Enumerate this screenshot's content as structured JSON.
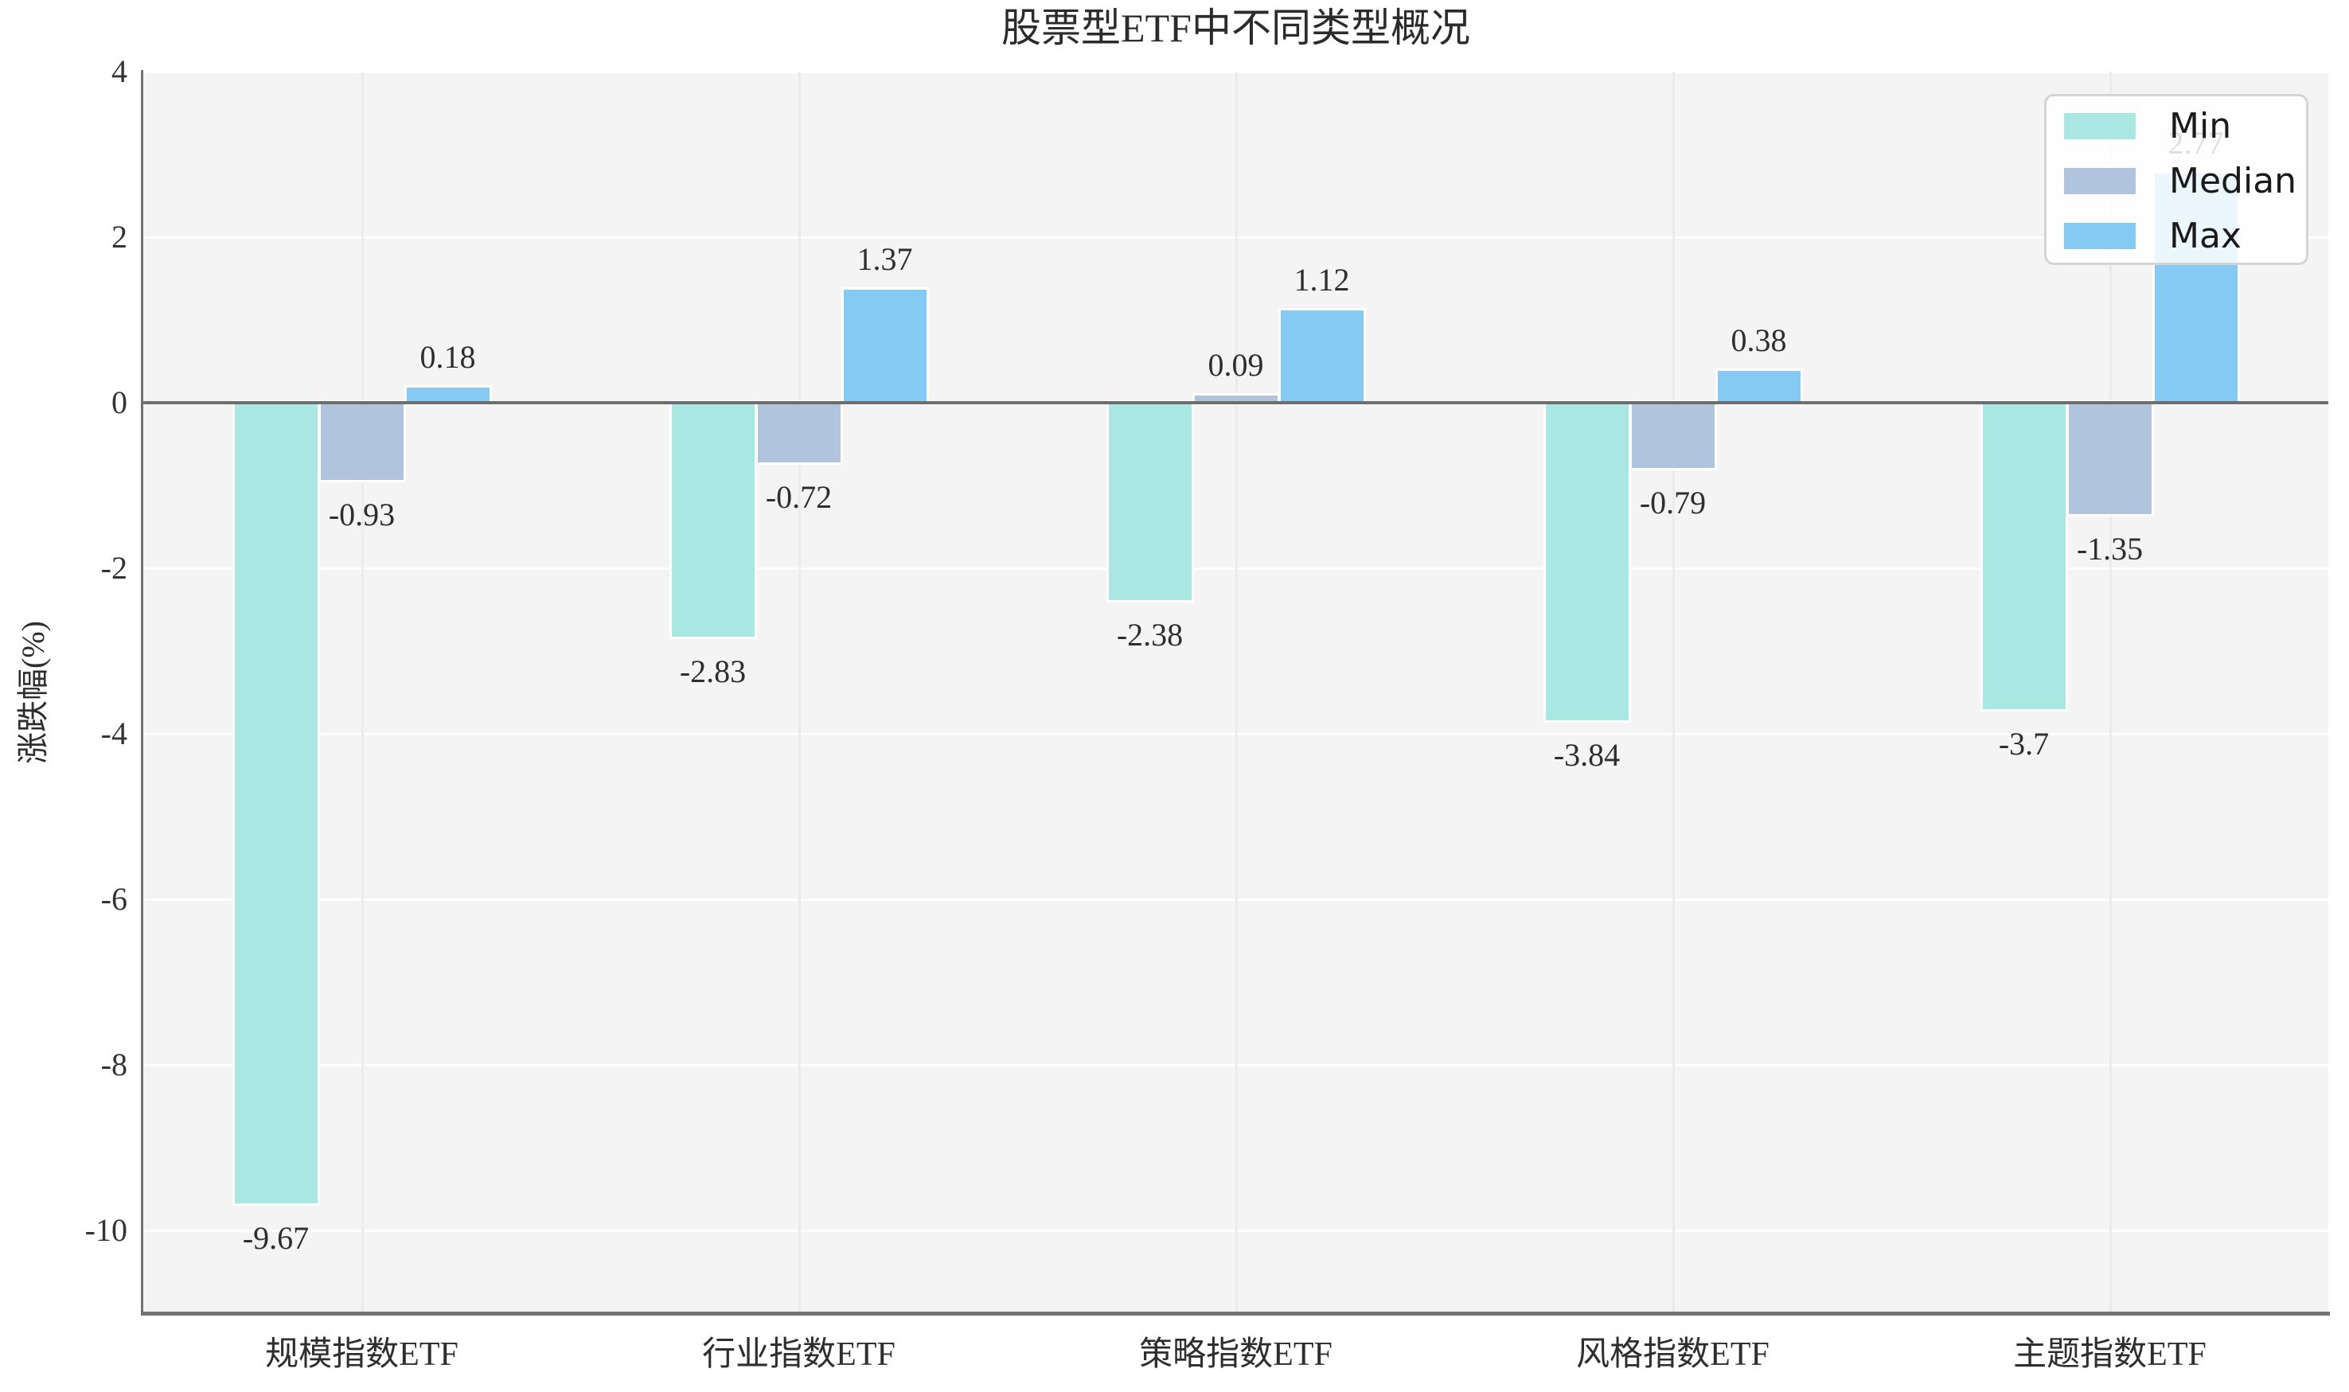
{
  "chart_data": {
    "type": "bar",
    "title": "股票型ETF中不同类型概况",
    "ylabel": "涨跌幅(%)",
    "categories": [
      "规模指数ETF",
      "行业指数ETF",
      "策略指数ETF",
      "风格指数ETF",
      "主题指数ETF"
    ],
    "series": [
      {
        "name": "Min",
        "color": "#a9e8e2",
        "values": [
          -9.67,
          -2.83,
          -2.38,
          -3.84,
          -3.7
        ],
        "labels": [
          "-9.67",
          "-2.83",
          "-2.38",
          "-3.84",
          "-3.7"
        ]
      },
      {
        "name": "Median",
        "color": "#b1c4de",
        "values": [
          -0.93,
          -0.72,
          0.09,
          -0.79,
          -1.35
        ],
        "labels": [
          "-0.93",
          "-0.72",
          "0.09",
          "-0.79",
          "-1.35"
        ]
      },
      {
        "name": "Max",
        "color": "#85caf3",
        "values": [
          0.18,
          1.37,
          1.12,
          0.38,
          2.77
        ],
        "labels": [
          "0.18",
          "1.37",
          "1.12",
          "0.38",
          "2.77"
        ]
      }
    ],
    "ylim": [
      -11,
      4
    ],
    "yticks": [
      4,
      2,
      0,
      -2,
      -4,
      -6,
      -8,
      -10
    ],
    "grid": true,
    "legend": {
      "position": "upper right",
      "entries": [
        "Min",
        "Median",
        "Max"
      ]
    }
  }
}
